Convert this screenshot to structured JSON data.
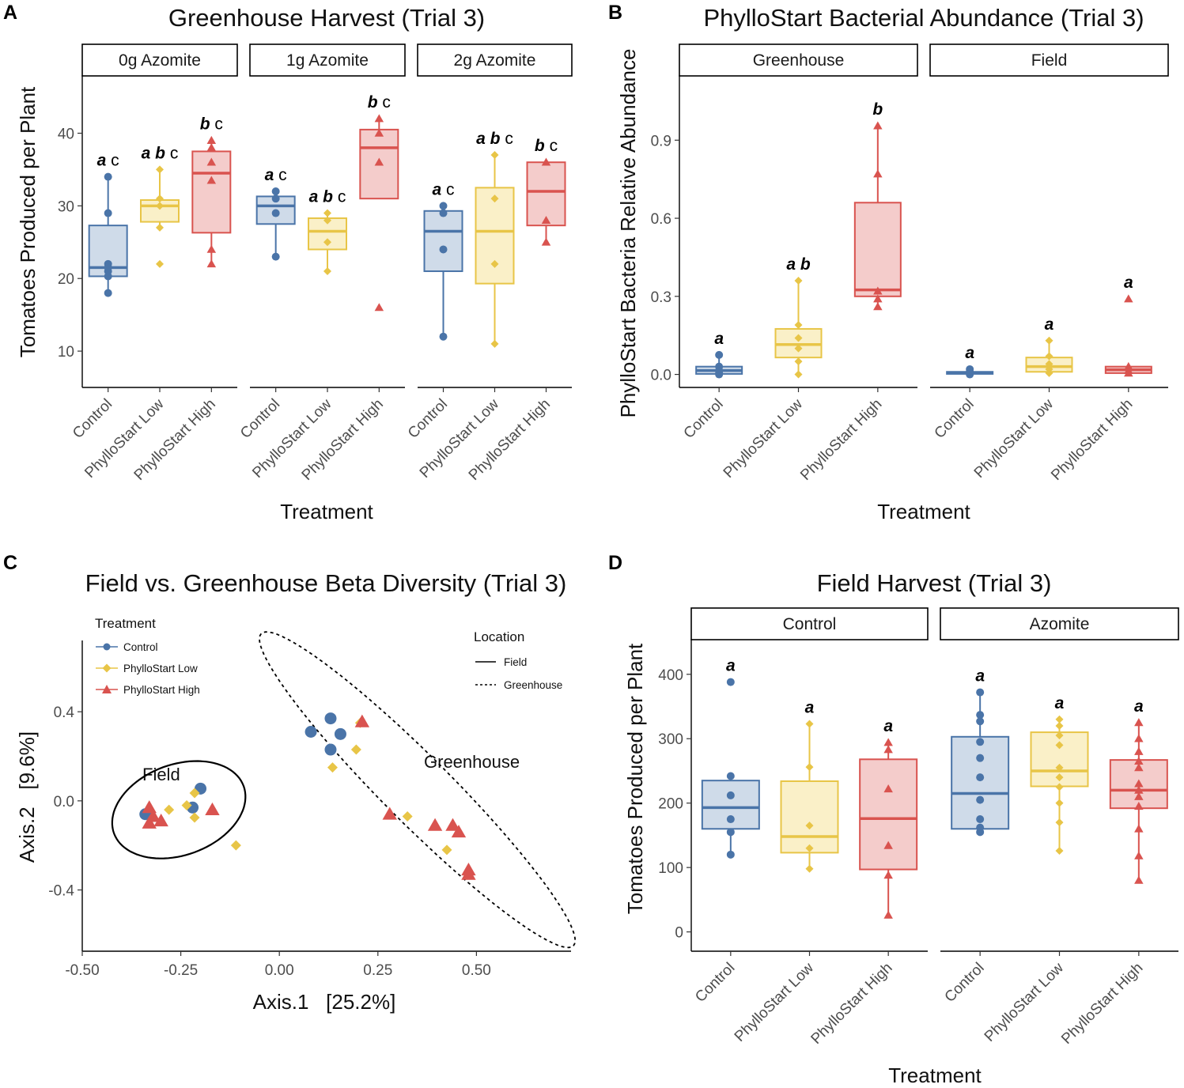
{
  "colors": {
    "control": "#4a74a8",
    "low": "#e8c547",
    "high": "#d9534f",
    "axis": "#000000"
  },
  "treatments": [
    "Control",
    "PhylloStart Low",
    "PhylloStart High"
  ],
  "chart_data": [
    {
      "panel": "A",
      "type": "box",
      "title": "Greenhouse Harvest (Trial 3)",
      "xlabel": "Treatment",
      "ylabel": "Tomatoes Produced per Plant",
      "ylim": [
        5,
        48
      ],
      "yticks": [
        10,
        20,
        30,
        40
      ],
      "facets": [
        {
          "label": "0g Azomite",
          "groups": [
            {
              "treatment": "Control",
              "letters": "a c",
              "box": {
                "q1": 20.3,
                "median": 21.5,
                "q3": 27.3,
                "min": 18,
                "max": 34
              },
              "points": [
                34,
                29,
                22,
                21.5,
                21,
                20.3,
                18
              ]
            },
            {
              "treatment": "PhylloStart Low",
              "letters": "a b c",
              "box": {
                "q1": 27.8,
                "median": 30,
                "q3": 30.8,
                "min": 27,
                "max": 35
              },
              "points": [
                35,
                31,
                30,
                27,
                22
              ]
            },
            {
              "treatment": "PhylloStart High",
              "letters": "b c",
              "box": {
                "q1": 26.3,
                "median": 34.5,
                "q3": 37.5,
                "min": 22,
                "max": 39
              },
              "points": [
                39,
                38,
                36,
                33.5,
                24,
                22
              ]
            }
          ]
        },
        {
          "label": "1g Azomite",
          "groups": [
            {
              "treatment": "Control",
              "letters": "a c",
              "box": {
                "q1": 27.5,
                "median": 30,
                "q3": 31.3,
                "min": 23,
                "max": 32
              },
              "points": [
                32,
                31,
                29,
                23
              ]
            },
            {
              "treatment": "PhylloStart Low",
              "letters": "a b c",
              "box": {
                "q1": 24,
                "median": 26.5,
                "q3": 28.3,
                "min": 21,
                "max": 29
              },
              "points": [
                29,
                28,
                25,
                21
              ]
            },
            {
              "treatment": "PhylloStart High",
              "letters": "b c",
              "box": {
                "q1": 31,
                "median": 38,
                "q3": 40.5,
                "min": 31,
                "max": 42
              },
              "points": [
                42,
                40,
                36,
                16
              ]
            }
          ]
        },
        {
          "label": "2g Azomite",
          "groups": [
            {
              "treatment": "Control",
              "letters": "a c",
              "box": {
                "q1": 21,
                "median": 26.5,
                "q3": 29.3,
                "min": 12,
                "max": 30
              },
              "points": [
                30,
                29,
                24,
                12
              ]
            },
            {
              "treatment": "PhylloStart Low",
              "letters": "a b c",
              "box": {
                "q1": 19.3,
                "median": 26.5,
                "q3": 32.5,
                "min": 11,
                "max": 37
              },
              "points": [
                37,
                31,
                22,
                11
              ]
            },
            {
              "treatment": "PhylloStart High",
              "letters": "b c",
              "box": {
                "q1": 27.3,
                "median": 32,
                "q3": 36,
                "min": 25,
                "max": 36
              },
              "points": [
                36,
                28,
                25
              ]
            }
          ]
        }
      ]
    },
    {
      "panel": "B",
      "type": "box",
      "title": "PhylloStart Bacterial Abundance (Trial 3)",
      "xlabel": "Treatment",
      "ylabel": "PhylloStart Bacteria Relative Abundance",
      "ylim": [
        -0.05,
        1.15
      ],
      "yticks": [
        0.0,
        0.3,
        0.6,
        0.9
      ],
      "facets": [
        {
          "label": "Greenhouse",
          "groups": [
            {
              "treatment": "Control",
              "letters": "a",
              "box": {
                "q1": 0.002,
                "median": 0.015,
                "q3": 0.03,
                "min": 0,
                "max": 0.075
              },
              "points": [
                0.075,
                0.03,
                0.015,
                0.005,
                0
              ]
            },
            {
              "treatment": "PhylloStart Low",
              "letters": "a b",
              "box": {
                "q1": 0.065,
                "median": 0.115,
                "q3": 0.175,
                "min": 0,
                "max": 0.36
              },
              "points": [
                0.36,
                0.19,
                0.14,
                0.1,
                0.05,
                0
              ]
            },
            {
              "treatment": "PhylloStart High",
              "letters": "b",
              "box": {
                "q1": 0.3,
                "median": 0.325,
                "q3": 0.66,
                "min": 0.26,
                "max": 0.955
              },
              "points": [
                0.955,
                0.77,
                0.32,
                0.29,
                0.26
              ]
            }
          ]
        },
        {
          "label": "Field",
          "groups": [
            {
              "treatment": "Control",
              "letters": "a",
              "box": {
                "q1": 0.002,
                "median": 0.006,
                "q3": 0.01,
                "min": 0,
                "max": 0.02
              },
              "points": [
                0.02,
                0.01,
                0.005,
                0
              ]
            },
            {
              "treatment": "PhylloStart Low",
              "letters": "a",
              "box": {
                "q1": 0.01,
                "median": 0.03,
                "q3": 0.065,
                "min": 0,
                "max": 0.13
              },
              "points": [
                0.13,
                0.07,
                0.04,
                0.02,
                0.005
              ]
            },
            {
              "treatment": "PhylloStart High",
              "letters": "a",
              "box": {
                "q1": 0.005,
                "median": 0.018,
                "q3": 0.03,
                "min": 0,
                "max": 0.03
              },
              "points": [
                0.29,
                0.03,
                0.015,
                0.005
              ]
            }
          ]
        }
      ]
    },
    {
      "panel": "C",
      "type": "scatter",
      "title": "Field vs. Greenhouse Beta Diversity (Trial 3)",
      "xlabel": "Axis.1   [25.2%]",
      "ylabel": "Axis.2   [9.6%]",
      "xlim": [
        -0.5,
        0.74
      ],
      "ylim": [
        -0.675,
        0.72
      ],
      "xticks": [
        -0.5,
        -0.25,
        0.0,
        0.25,
        0.5
      ],
      "yticks": [
        -0.4,
        0.0,
        0.4
      ],
      "legend_treatment_title": "Treatment",
      "legend_location_title": "Location",
      "legend_location_items": [
        "Field",
        "Greenhouse"
      ],
      "annotations": [
        "Field",
        "Greenhouse"
      ],
      "points": [
        {
          "t": "Control",
          "x": -0.34,
          "y": -0.06
        },
        {
          "t": "Control",
          "x": -0.22,
          "y": -0.03
        },
        {
          "t": "Control",
          "x": -0.2,
          "y": 0.055
        },
        {
          "t": "Control",
          "x": 0.08,
          "y": 0.31
        },
        {
          "t": "Control",
          "x": 0.13,
          "y": 0.37
        },
        {
          "t": "Control",
          "x": 0.155,
          "y": 0.3
        },
        {
          "t": "Control",
          "x": 0.13,
          "y": 0.23
        },
        {
          "t": "PhylloStart Low",
          "x": -0.28,
          "y": -0.04
        },
        {
          "t": "PhylloStart Low",
          "x": -0.235,
          "y": -0.02
        },
        {
          "t": "PhylloStart Low",
          "x": -0.215,
          "y": 0.035
        },
        {
          "t": "PhylloStart Low",
          "x": -0.215,
          "y": -0.075
        },
        {
          "t": "PhylloStart Low",
          "x": -0.11,
          "y": -0.2
        },
        {
          "t": "PhylloStart Low",
          "x": 0.135,
          "y": 0.15
        },
        {
          "t": "PhylloStart Low",
          "x": 0.195,
          "y": 0.23
        },
        {
          "t": "PhylloStart Low",
          "x": 0.205,
          "y": 0.35
        },
        {
          "t": "PhylloStart Low",
          "x": 0.325,
          "y": -0.07
        },
        {
          "t": "PhylloStart Low",
          "x": 0.425,
          "y": -0.22
        },
        {
          "t": "PhylloStart High",
          "x": -0.33,
          "y": -0.03
        },
        {
          "t": "PhylloStart High",
          "x": -0.32,
          "y": -0.07
        },
        {
          "t": "PhylloStart High",
          "x": -0.33,
          "y": -0.1
        },
        {
          "t": "PhylloStart High",
          "x": -0.3,
          "y": -0.09
        },
        {
          "t": "PhylloStart High",
          "x": -0.17,
          "y": -0.04
        },
        {
          "t": "PhylloStart High",
          "x": 0.21,
          "y": 0.355
        },
        {
          "t": "PhylloStart High",
          "x": 0.28,
          "y": -0.06
        },
        {
          "t": "PhylloStart High",
          "x": 0.395,
          "y": -0.11
        },
        {
          "t": "PhylloStart High",
          "x": 0.44,
          "y": -0.11
        },
        {
          "t": "PhylloStart High",
          "x": 0.455,
          "y": -0.14
        },
        {
          "t": "PhylloStart High",
          "x": 0.48,
          "y": -0.31
        },
        {
          "t": "PhylloStart High",
          "x": 0.48,
          "y": -0.33
        }
      ],
      "ellipses": [
        {
          "location": "Field",
          "cx": -0.255,
          "cy": -0.04,
          "rx": 0.175,
          "ry": 0.115,
          "angle_deg": 20
        },
        {
          "location": "Greenhouse",
          "cx": 0.35,
          "cy": 0.05,
          "rx": 0.56,
          "ry": 0.085,
          "angle_deg": -45
        }
      ]
    },
    {
      "panel": "D",
      "type": "box",
      "title": "Field Harvest (Trial 3)",
      "xlabel": "Treatment",
      "ylabel": "Tomatoes Produced per Plant",
      "ylim": [
        -30,
        455
      ],
      "yticks": [
        0,
        100,
        200,
        300,
        400
      ],
      "facets": [
        {
          "label": "Control",
          "groups": [
            {
              "treatment": "Control",
              "letters": "a",
              "box": {
                "q1": 160,
                "median": 193,
                "q3": 235,
                "min": 120,
                "max": 235
              },
              "points": [
                388,
                242,
                212,
                175,
                155,
                120
              ]
            },
            {
              "treatment": "PhylloStart Low",
              "letters": "a",
              "box": {
                "q1": 123,
                "median": 148,
                "q3": 234,
                "min": 98,
                "max": 323
              },
              "points": [
                323,
                256,
                165,
                130,
                98
              ]
            },
            {
              "treatment": "PhylloStart High",
              "letters": "a",
              "box": {
                "q1": 97,
                "median": 176,
                "q3": 268,
                "min": 26,
                "max": 294
              },
              "points": [
                294,
                283,
                222,
                134,
                88,
                26
              ]
            }
          ]
        },
        {
          "label": "Azomite",
          "groups": [
            {
              "treatment": "Control",
              "letters": "a",
              "box": {
                "q1": 160,
                "median": 215,
                "q3": 303,
                "min": 155,
                "max": 372
              },
              "points": [
                372,
                337,
                327,
                295,
                270,
                240,
                205,
                175,
                162,
                155
              ]
            },
            {
              "treatment": "PhylloStart Low",
              "letters": "a",
              "box": {
                "q1": 226,
                "median": 250,
                "q3": 310,
                "min": 126,
                "max": 330
              },
              "points": [
                330,
                320,
                305,
                290,
                255,
                240,
                225,
                200,
                170,
                126
              ]
            },
            {
              "treatment": "PhylloStart High",
              "letters": "a",
              "box": {
                "q1": 192,
                "median": 220,
                "q3": 267,
                "min": 80,
                "max": 325
              },
              "points": [
                325,
                300,
                280,
                265,
                255,
                230,
                220,
                210,
                195,
                160,
                118,
                80
              ]
            }
          ]
        }
      ]
    }
  ]
}
